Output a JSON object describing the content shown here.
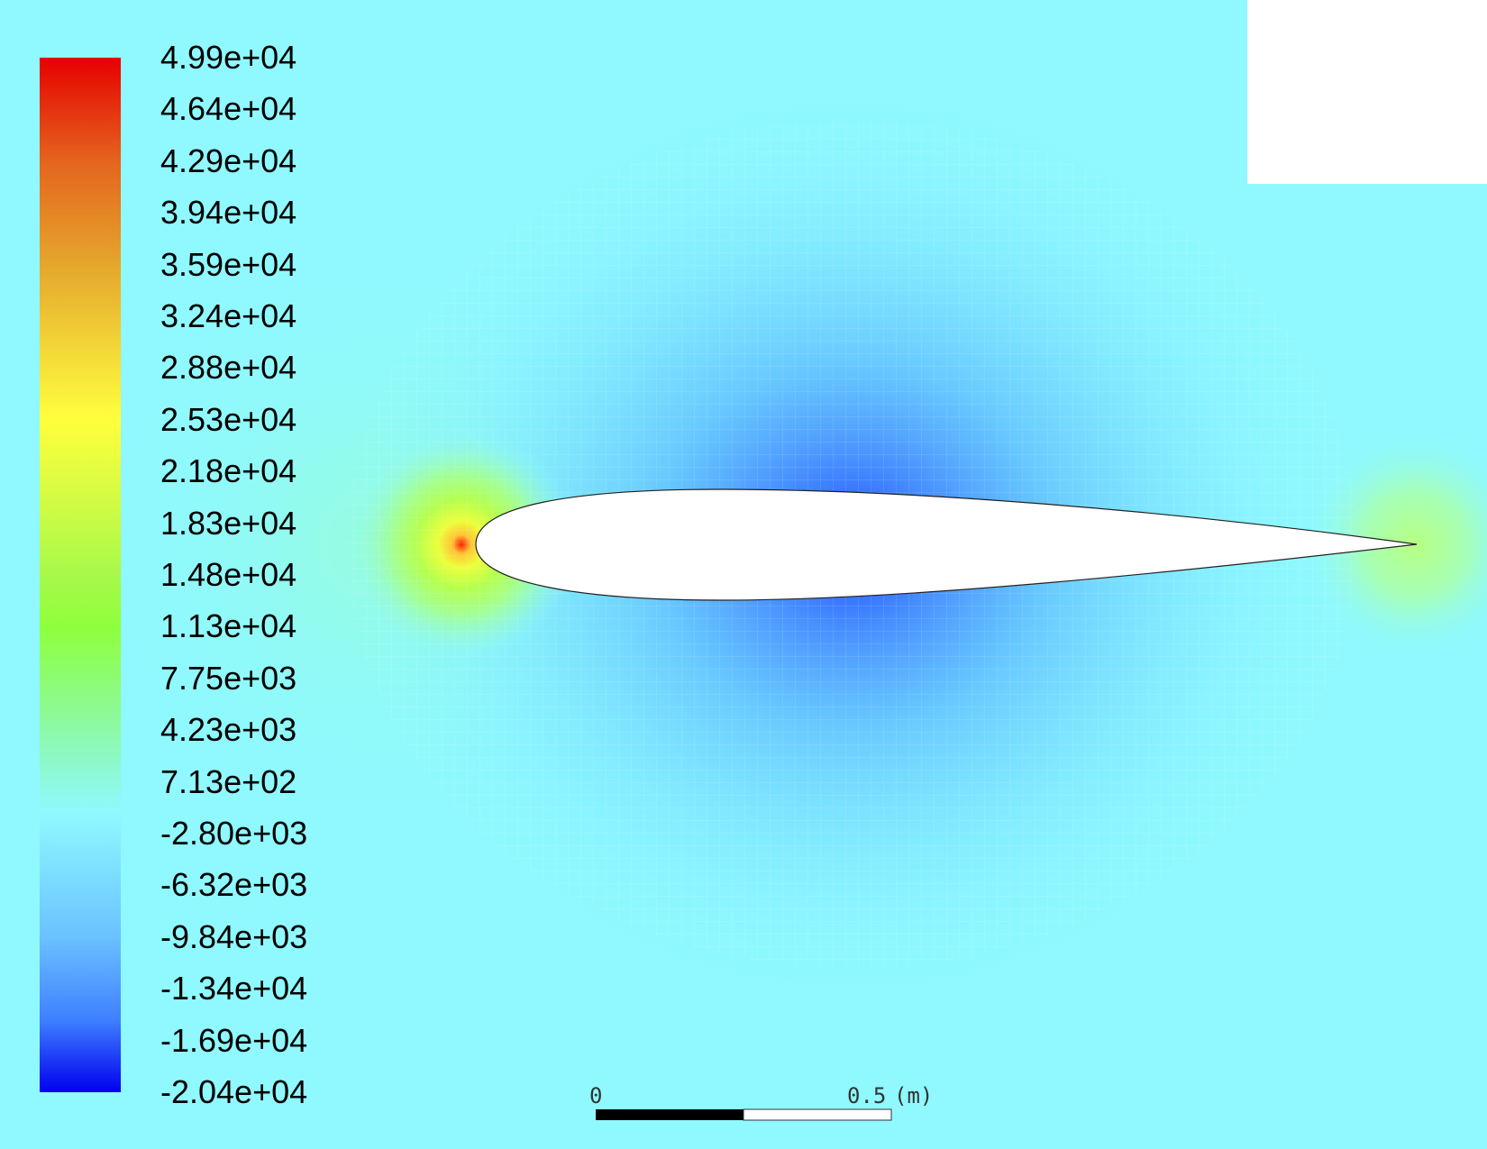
{
  "chart_data": {
    "type": "heatmap",
    "colormap": [
      "#0000ff",
      "#00a2ff",
      "#8ff9ff",
      "#8eff3c",
      "#ffff3c",
      "#ff0000"
    ],
    "legend": {
      "placement": "left",
      "min": -20400,
      "max": 49900,
      "labels": [
        "4.99e+04",
        "4.64e+04",
        "4.29e+04",
        "3.94e+04",
        "3.59e+04",
        "3.24e+04",
        "2.88e+04",
        "2.53e+04",
        "2.18e+04",
        "1.83e+04",
        "1.48e+04",
        "1.13e+04",
        "7.75e+03",
        "4.23e+03",
        "7.13e+02",
        "-2.80e+03",
        "-6.32e+03",
        "-9.84e+03",
        "-1.34e+04",
        "-1.69e+04",
        "-2.04e+04"
      ],
      "label_values": [
        49900,
        46400,
        42900,
        39400,
        35900,
        32400,
        28800,
        25300,
        21800,
        18300,
        14800,
        11300,
        7750,
        4230,
        713,
        -2800,
        -6320,
        -9840,
        -13400,
        -16900,
        -20400
      ]
    },
    "field_features": [
      {
        "feature": "stagnation-point",
        "location": "leading-edge",
        "value": 49900
      },
      {
        "feature": "suction-region",
        "location": "upper-and-lower-surface",
        "value": -20400
      },
      {
        "feature": "freestream",
        "value": 713
      }
    ]
  },
  "scale_bar": {
    "start_label": "0",
    "end_label": "0.5",
    "unit_label": "(m)",
    "length_m": 0.5
  }
}
